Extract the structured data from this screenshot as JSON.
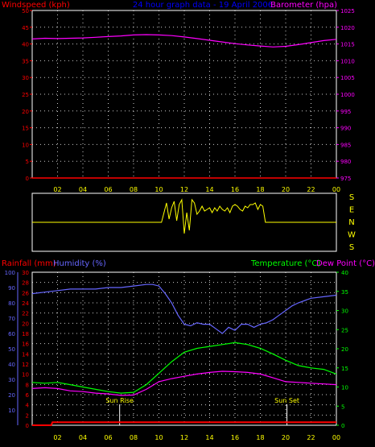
{
  "chart_data": [
    {
      "type": "line",
      "panel": "top",
      "title": "24 hour graph data - 19 April 2006",
      "left_axis": {
        "label": "Windspeed (kph)",
        "ticks": [
          "0",
          "5",
          "10",
          "15",
          "20",
          "25",
          "30",
          "35",
          "40",
          "45",
          "50"
        ],
        "ylim": [
          0,
          50
        ],
        "color": "#ff0000"
      },
      "right_axis": {
        "label": "Barometer (hpa)",
        "ticks": [
          "975",
          "980",
          "985",
          "990",
          "995",
          "1000",
          "1005",
          "1010",
          "1015",
          "1020",
          "1025"
        ],
        "ylim": [
          975,
          1025
        ],
        "color": "#ff00ff"
      },
      "x_ticks": [
        "02",
        "04",
        "06",
        "08",
        "10",
        "12",
        "14",
        "16",
        "18",
        "20",
        "22",
        "00"
      ],
      "xlim": [
        0,
        24
      ],
      "grid": true,
      "series": [
        {
          "axis": "right",
          "color": "#ff00ff",
          "x": [
            0,
            1,
            2,
            3,
            4,
            5,
            6,
            7,
            8,
            9,
            10,
            11,
            12,
            13,
            14,
            15,
            16,
            17,
            18,
            19,
            20,
            21,
            22,
            23,
            24
          ],
          "values": [
            1016.5,
            1016.7,
            1016.6,
            1016.7,
            1016.8,
            1017.0,
            1017.2,
            1017.4,
            1017.7,
            1017.8,
            1017.7,
            1017.5,
            1017.1,
            1016.6,
            1016.1,
            1015.6,
            1015.1,
            1014.7,
            1014.4,
            1014.1,
            1014.3,
            1014.8,
            1015.4,
            1016.0,
            1016.4
          ]
        },
        {
          "axis": "left",
          "color": "#ff0000",
          "x": [
            0,
            24
          ],
          "values": [
            0,
            0
          ]
        }
      ]
    },
    {
      "type": "line",
      "panel": "middle",
      "left_axis": {
        "label": "",
        "ticks": []
      },
      "right_axis": {
        "label": "",
        "ticks": [
          "S",
          "E",
          "N",
          "W",
          "S"
        ],
        "color": "#ffff00"
      },
      "series": [
        {
          "color": "#ffff00",
          "x": [
            0,
            10.2,
            10.4,
            10.6,
            10.8,
            11.0,
            11.2,
            11.4,
            11.6,
            11.8,
            12.0,
            12.2,
            12.4,
            12.6,
            12.8,
            13.0,
            13.2,
            13.4,
            13.6,
            13.8,
            14.0,
            14.2,
            14.4,
            14.6,
            14.8,
            15.0,
            15.2,
            15.4,
            15.6,
            15.8,
            16.0,
            16.2,
            16.4,
            16.6,
            16.8,
            17.0,
            17.2,
            17.4,
            17.6,
            17.8,
            18.0,
            18.2,
            18.4,
            24
          ],
          "values": [
            180,
            180,
            240,
            300,
            200,
            270,
            310,
            190,
            290,
            320,
            110,
            240,
            130,
            320,
            300,
            230,
            250,
            280,
            250,
            260,
            270,
            240,
            270,
            250,
            280,
            260,
            250,
            270,
            240,
            280,
            290,
            280,
            260,
            250,
            280,
            270,
            290,
            290,
            300,
            260,
            290,
            280,
            180,
            180
          ]
        }
      ]
    },
    {
      "type": "line",
      "panel": "bottom",
      "left_axes": [
        {
          "label": "Rainfall (mm)",
          "ticks": [
            "0",
            "2",
            "4",
            "6",
            "8",
            "10",
            "12",
            "14",
            "16",
            "18",
            "20",
            "22",
            "24",
            "26",
            "28",
            "30"
          ],
          "ylim": [
            0,
            30
          ],
          "color": "#ff0000"
        },
        {
          "label": "Humidity (%)",
          "ticks": [
            "10",
            "20",
            "30",
            "40",
            "50",
            "60",
            "70",
            "80",
            "90",
            "100"
          ],
          "ylim": [
            0,
            100
          ],
          "color": "#6666ff"
        }
      ],
      "right_axis": {
        "label": "Temperature (°C)",
        "label2": "Dew Point (°C)",
        "ticks": [
          "0",
          "5",
          "10",
          "15",
          "20",
          "25",
          "30",
          "35",
          "40"
        ],
        "ylim": [
          0,
          40
        ],
        "color": "#00ff00"
      },
      "x_ticks": [
        "02",
        "04",
        "06",
        "08",
        "10",
        "12",
        "14",
        "16",
        "18",
        "20",
        "22",
        "00"
      ],
      "xlim": [
        0,
        24
      ],
      "grid": true,
      "annotations": [
        {
          "text": "Sun Rise",
          "x": 6.9
        },
        {
          "text": "Sun Set",
          "x": 20.1
        }
      ],
      "series": [
        {
          "axis": "humidity",
          "color": "#6666ff",
          "x": [
            0,
            1,
            2,
            3,
            4,
            5,
            6,
            7,
            8,
            9,
            9.5,
            10,
            10.5,
            11,
            11.5,
            12,
            12.5,
            13,
            13.5,
            14,
            14.5,
            15,
            15.5,
            16,
            16.5,
            17,
            17.5,
            18,
            18.5,
            19,
            19.5,
            20,
            20.5,
            21,
            22,
            23,
            24
          ],
          "values": [
            86,
            87,
            88,
            89,
            89,
            89,
            90,
            90,
            91,
            92,
            92,
            91,
            86,
            80,
            72,
            66,
            65,
            67,
            66,
            66,
            63,
            60,
            64,
            62,
            66,
            66,
            64,
            66,
            67,
            69,
            72,
            75,
            78,
            80,
            83,
            84,
            85
          ]
        },
        {
          "axis": "temperature",
          "color": "#00ff00",
          "x": [
            0,
            1,
            2,
            3,
            4,
            5,
            6,
            7,
            8,
            9,
            10,
            11,
            12,
            13,
            14,
            15,
            16,
            17,
            18,
            19,
            20,
            21,
            22,
            23,
            24
          ],
          "values": [
            11.2,
            11.0,
            11.2,
            10.6,
            10.0,
            9.4,
            8.8,
            8.4,
            8.6,
            10.6,
            13.6,
            16.6,
            19.1,
            20.1,
            20.6,
            21.1,
            21.6,
            21.1,
            20.1,
            18.6,
            17.0,
            15.6,
            15.0,
            14.6,
            13.4
          ]
        },
        {
          "axis": "temperature",
          "color": "#ff00ff",
          "x": [
            0,
            1,
            2,
            3,
            4,
            5,
            6,
            7,
            8,
            9,
            10,
            11,
            12,
            13,
            14,
            15,
            16,
            17,
            18,
            19,
            20,
            21,
            22,
            23,
            24
          ],
          "values": [
            9.6,
            9.8,
            9.6,
            9.0,
            8.8,
            8.4,
            8.2,
            7.8,
            7.9,
            9.4,
            11.4,
            12.2,
            12.8,
            13.4,
            13.8,
            14.1,
            14.0,
            13.8,
            13.4,
            12.4,
            11.4,
            11.2,
            11.0,
            10.8,
            10.6
          ]
        },
        {
          "axis": "rainfall",
          "color": "#ff0000",
          "x": [
            0,
            1.5,
            1.6,
            24
          ],
          "values": [
            0,
            0,
            0.6,
            0.6
          ]
        }
      ]
    }
  ]
}
